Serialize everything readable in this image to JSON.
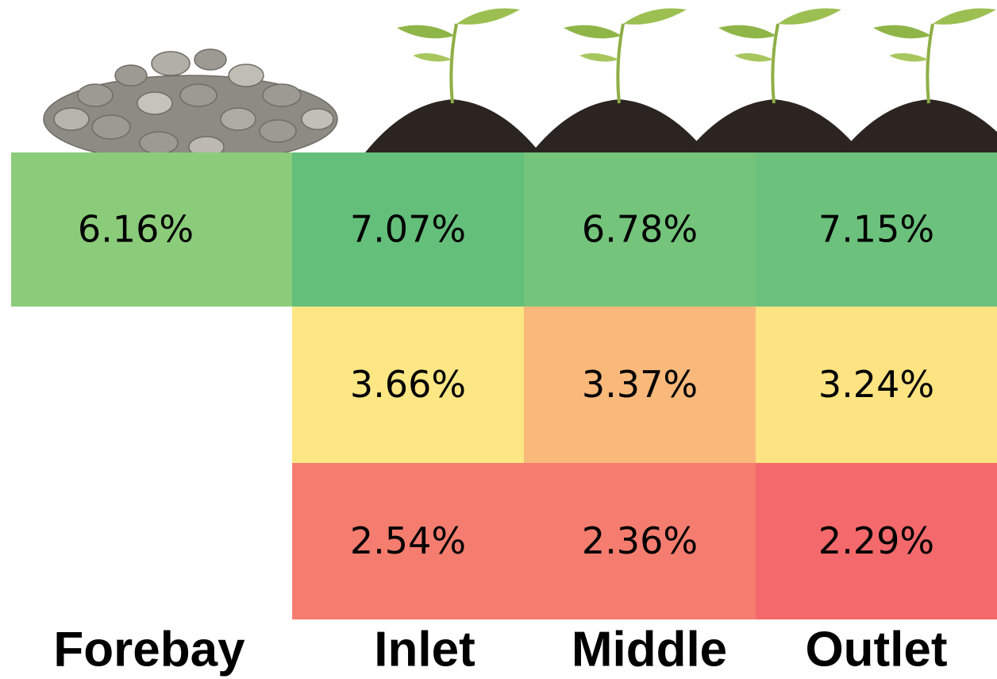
{
  "table": {
    "columns": [
      "Forebay",
      "Inlet",
      "Middle",
      "Outlet"
    ],
    "rows": [
      [
        {
          "text": "6.16%",
          "color": "#8bcc7a"
        },
        {
          "text": "7.07%",
          "color": "#64bf7b"
        },
        {
          "text": "6.78%",
          "color": "#74c47c"
        },
        {
          "text": "7.15%",
          "color": "#6cc27c"
        }
      ],
      [
        null,
        {
          "text": "3.66%",
          "color": "#fde784"
        },
        {
          "text": "3.37%",
          "color": "#f9b97a"
        },
        {
          "text": "3.24%",
          "color": "#fde381"
        }
      ],
      [
        null,
        {
          "text": "2.54%",
          "color": "#f57d6f"
        },
        {
          "text": "2.36%",
          "color": "#f57d70"
        },
        {
          "text": "2.29%",
          "color": "#f4696b"
        }
      ]
    ]
  }
}
